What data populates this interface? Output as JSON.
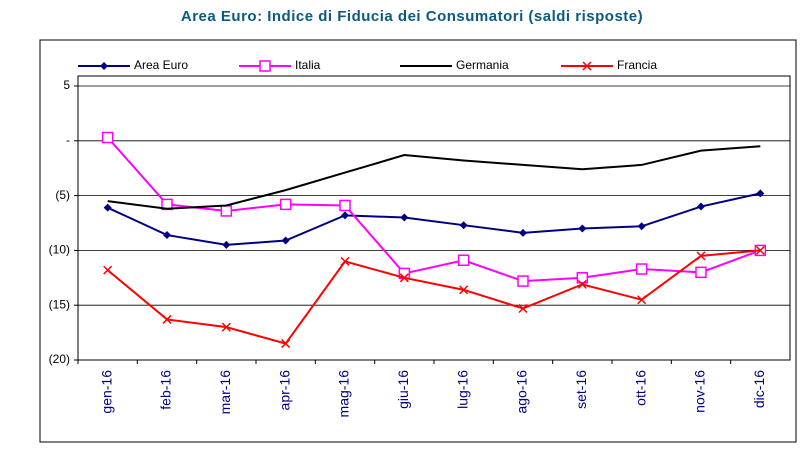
{
  "chart_data": {
    "type": "line",
    "title": "Area Euro: Indice di Fiducia dei Consumatori (saldi risposte)",
    "categories": [
      "gen-16",
      "feb-16",
      "mar-16",
      "apr-16",
      "mag-16",
      "giu-16",
      "lug-16",
      "ago-16",
      "set-16",
      "ott-16",
      "nov-16",
      "dic-16"
    ],
    "series": [
      {
        "name": "Area Euro",
        "color": "#000080",
        "marker": "diamond",
        "values": [
          -6.1,
          -8.6,
          -9.5,
          -9.1,
          -6.8,
          -7.0,
          -7.7,
          -8.4,
          -8.0,
          -7.8,
          -6.0,
          -4.8
        ]
      },
      {
        "name": "Italia",
        "color": "#ff00ff",
        "marker": "square",
        "values": [
          0.3,
          -5.8,
          -6.4,
          -5.8,
          -5.9,
          -12.1,
          -10.9,
          -12.8,
          -12.5,
          -11.7,
          -12.0,
          -10.0
        ]
      },
      {
        "name": "Germania",
        "color": "#000000",
        "marker": "none",
        "values": [
          -5.5,
          -6.2,
          -5.9,
          -4.5,
          -2.9,
          -1.3,
          -1.8,
          -2.2,
          -2.6,
          -2.2,
          -0.9,
          -0.5
        ]
      },
      {
        "name": "Francia",
        "color": "#ff0000",
        "marker": "x",
        "values": [
          -11.8,
          -16.3,
          -17.0,
          -18.5,
          -11.0,
          -12.5,
          -13.6,
          -15.3,
          -13.1,
          -14.5,
          -10.5,
          -10.0
        ]
      }
    ],
    "ylim": [
      -20,
      5
    ],
    "yticks": [
      {
        "value": -20,
        "label": "(20)"
      },
      {
        "value": -15,
        "label": "(15)"
      },
      {
        "value": -10,
        "label": "(10)"
      },
      {
        "value": -5,
        "label": "(5)"
      },
      {
        "value": 0,
        "label": "-"
      },
      5
    ],
    "grid": true,
    "legend": "top"
  }
}
